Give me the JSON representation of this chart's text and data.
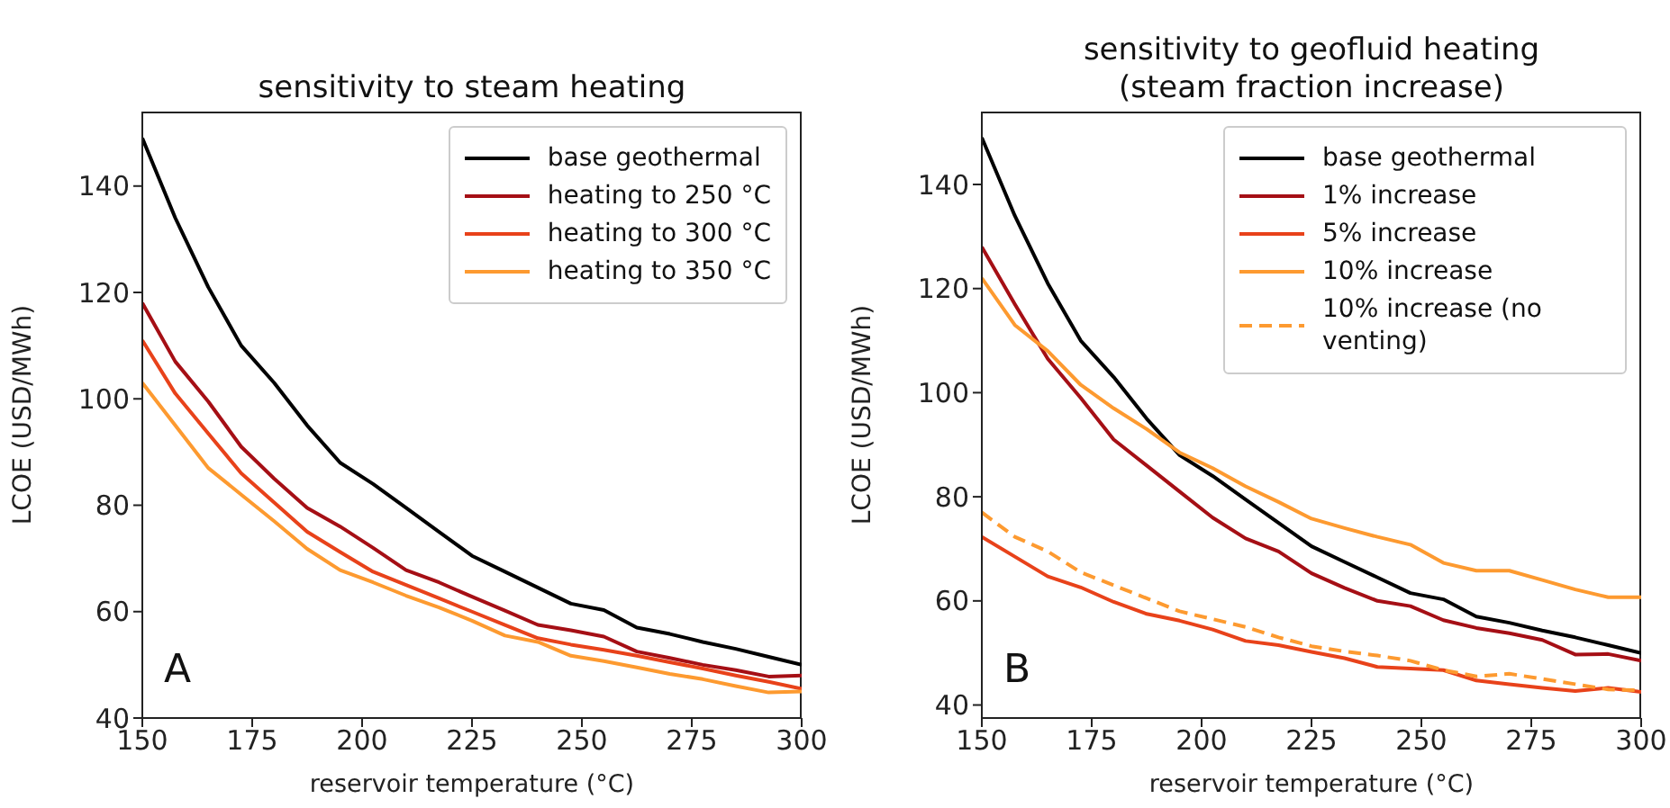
{
  "chart_data": [
    {
      "type": "line",
      "title": "sensitivity to steam heating",
      "xlabel": "reservoir temperature (°C)",
      "ylabel": "LCOE (USD/MWh)",
      "annotations": [
        "A"
      ],
      "legend": "top right",
      "x": [
        150,
        157.5,
        165,
        172.5,
        180,
        187.5,
        195,
        202.5,
        210,
        217.5,
        225,
        232.5,
        240,
        247.5,
        255,
        262.5,
        270,
        277.5,
        285,
        292.5,
        300
      ],
      "xlim": [
        150,
        300
      ],
      "xticks": [
        150,
        175,
        200,
        225,
        250,
        275,
        300
      ],
      "ylim": [
        40,
        154
      ],
      "yticks": [
        40,
        60,
        80,
        100,
        120,
        140
      ],
      "series": [
        {
          "name": "base geothermal",
          "color": "#000000",
          "values": [
            149,
            134,
            121,
            110,
            103,
            95,
            88,
            84,
            79.5,
            75,
            70.5,
            67.5,
            64.5,
            61.5,
            60.3,
            57,
            55.8,
            54.3,
            53,
            51.5,
            50
          ]
        },
        {
          "name": "heating to 250 °C",
          "color": "#a50f15",
          "values": [
            118,
            107,
            99.5,
            91,
            85,
            79.5,
            76,
            72,
            67.8,
            65.5,
            62.8,
            60.2,
            57.5,
            56.5,
            55.3,
            52.5,
            51.3,
            50,
            49,
            47.8,
            48
          ]
        },
        {
          "name": "heating to 300 °C",
          "color": "#e8421a",
          "values": [
            111,
            101,
            93.5,
            86,
            80.5,
            75,
            71.2,
            67.5,
            65,
            62.5,
            60,
            57.5,
            55,
            53.8,
            52.8,
            51.7,
            50.5,
            49.3,
            48,
            46.8,
            45.5
          ]
        },
        {
          "name": "heating to 350 °C",
          "color": "#fd9a30",
          "values": [
            103,
            95,
            87,
            82,
            77,
            71.8,
            67.8,
            65.5,
            63,
            60.8,
            58.3,
            55.5,
            54.3,
            51.7,
            50.7,
            49.5,
            48.3,
            47.3,
            46,
            44.8,
            45
          ]
        }
      ]
    },
    {
      "type": "line",
      "title": "sensitivity to geofluid heating (steam fraction increase)",
      "xlabel": "reservoir temperature (°C)",
      "ylabel": "LCOE (USD/MWh)",
      "annotations": [
        "B"
      ],
      "legend": "top right",
      "x": [
        150,
        157.5,
        165,
        172.5,
        180,
        187.5,
        195,
        202.5,
        210,
        217.5,
        225,
        232.5,
        240,
        247.5,
        255,
        262.5,
        270,
        277.5,
        285,
        292.5,
        300
      ],
      "xlim": [
        150,
        300
      ],
      "xticks": [
        150,
        175,
        200,
        225,
        250,
        275,
        300
      ],
      "ylim": [
        37.5,
        154
      ],
      "yticks": [
        40,
        60,
        80,
        100,
        120,
        140
      ],
      "series": [
        {
          "name": "base geothermal",
          "color": "#000000",
          "values": [
            149,
            134,
            121,
            110,
            103,
            95,
            88,
            84,
            79.5,
            75,
            70.5,
            67.5,
            64.5,
            61.5,
            60.3,
            57,
            55.8,
            54.3,
            53,
            51.5,
            50
          ]
        },
        {
          "name": "1% increase",
          "color": "#a50f15",
          "values": [
            128,
            117,
            106.5,
            99,
            91,
            86,
            81,
            76,
            72,
            69.5,
            65.3,
            62.5,
            60,
            59,
            56.3,
            54.8,
            53.8,
            52.5,
            49.7,
            49.8,
            48.5
          ]
        },
        {
          "name": "5% increase",
          "color": "#e8421a",
          "values": [
            72.3,
            68.5,
            64.7,
            62.6,
            59.8,
            57.5,
            56.2,
            54.5,
            52.3,
            51.5,
            50.2,
            49,
            47.3,
            47,
            46.7,
            44.7,
            44,
            43.3,
            42.7,
            43.3,
            42.5
          ]
        },
        {
          "name": "10% increase",
          "color": "#fd9a30",
          "values": [
            122,
            113,
            108,
            101.5,
            97,
            93,
            88.5,
            85.5,
            82,
            79,
            75.8,
            74,
            72.3,
            70.8,
            67.3,
            65.8,
            65.8,
            64,
            62.2,
            60.7,
            60.7
          ]
        },
        {
          "name": "10% increase (no venting)",
          "color": "#fd9a30",
          "line_style": "dashed",
          "values": [
            77,
            72.3,
            69.5,
            65.5,
            63,
            60.5,
            58,
            56.5,
            55,
            53,
            51.3,
            50.3,
            49.5,
            48.5,
            46.7,
            45.5,
            46,
            45,
            44,
            43,
            42.8
          ]
        }
      ]
    }
  ]
}
